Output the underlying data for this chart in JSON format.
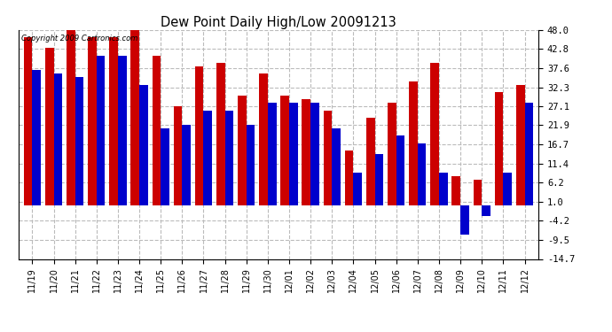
{
  "title": "Dew Point Daily High/Low 20091213",
  "copyright": "Copyright 2009 Cartronics.com",
  "dates": [
    "11/19",
    "11/20",
    "11/21",
    "11/22",
    "11/23",
    "11/24",
    "11/25",
    "11/26",
    "11/27",
    "11/28",
    "11/29",
    "11/30",
    "12/01",
    "12/02",
    "12/03",
    "12/04",
    "12/05",
    "12/06",
    "12/07",
    "12/08",
    "12/09",
    "12/10",
    "12/11",
    "12/12"
  ],
  "highs": [
    46,
    43,
    48,
    46,
    46,
    48,
    41,
    27,
    38,
    39,
    30,
    36,
    30,
    29,
    26,
    15,
    24,
    28,
    34,
    39,
    8,
    7,
    31,
    33
  ],
  "lows": [
    37,
    36,
    35,
    41,
    41,
    33,
    21,
    22,
    26,
    26,
    22,
    28,
    28,
    28,
    21,
    9,
    14,
    19,
    17,
    9,
    -8,
    -3,
    9,
    28
  ],
  "high_color": "#cc0000",
  "low_color": "#0000cc",
  "bg_color": "#ffffff",
  "plot_bg_color": "#ffffff",
  "grid_color": "#999999",
  "yticks": [
    48.0,
    42.8,
    37.6,
    32.3,
    27.1,
    21.9,
    16.7,
    11.4,
    6.2,
    1.0,
    -4.2,
    -9.5,
    -14.7
  ],
  "ylim": [
    -14.7,
    48.0
  ],
  "bar_width": 0.4,
  "figwidth": 6.9,
  "figheight": 3.75,
  "dpi": 100
}
